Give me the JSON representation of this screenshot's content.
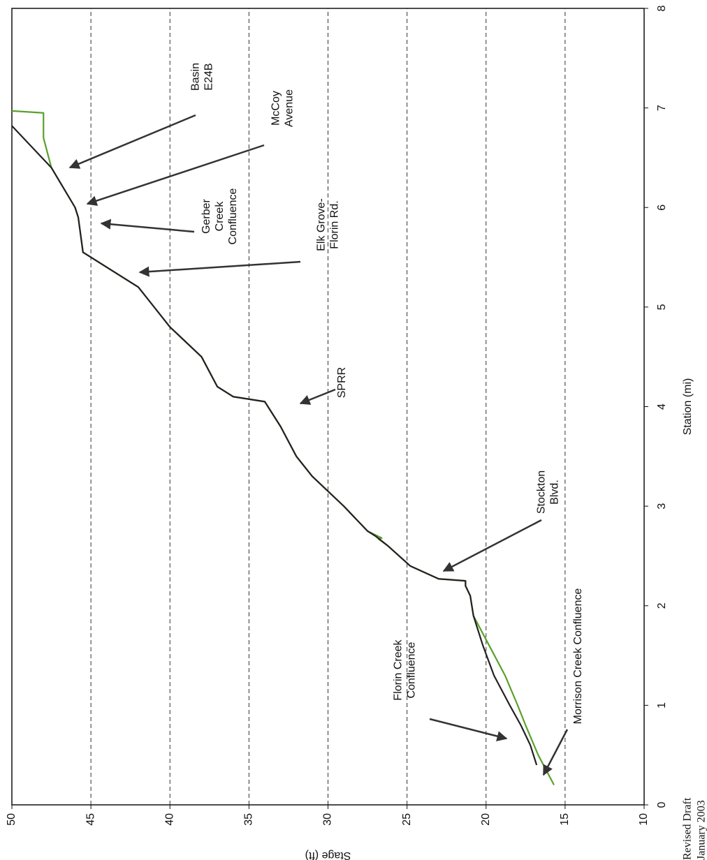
{
  "chart_data": {
    "type": "line",
    "xlabel": "Station (mi)",
    "ylabel": "Stage (ft)",
    "xlim": [
      0,
      8
    ],
    "ylim": [
      10,
      50
    ],
    "xticks": [
      0,
      1,
      2,
      3,
      4,
      5,
      6,
      7,
      8
    ],
    "yticks": [
      10,
      15,
      20,
      25,
      30,
      35,
      40,
      45,
      50
    ],
    "grid": true,
    "series": [
      {
        "color": "#5aa02c",
        "x": [
          0.2,
          0.5,
          0.8,
          1.0,
          1.3,
          1.6,
          1.9,
          2.1,
          2.2,
          2.25,
          2.27,
          2.4,
          2.6,
          2.67,
          2.68,
          2.75,
          3.0,
          3.3,
          3.5,
          3.8,
          4.05,
          4.1,
          4.2,
          4.5,
          4.8,
          5.0,
          5.2,
          5.4,
          5.55,
          5.9,
          6.0,
          6.4,
          6.7,
          6.95,
          6.97
        ],
        "values": [
          15.7,
          16.7,
          17.5,
          18.0,
          18.8,
          19.8,
          20.8,
          21.0,
          21.3,
          21.3,
          23.0,
          24.8,
          26.2,
          26.8,
          26.6,
          27.5,
          29.0,
          31.0,
          32.0,
          33.0,
          34.0,
          36.0,
          37.0,
          38.0,
          40.0,
          41.0,
          42.0,
          44.0,
          45.5,
          45.8,
          46.0,
          47.5,
          48.0,
          48.0,
          50.0
        ]
      },
      {
        "color": "#222222",
        "x": [
          0.4,
          0.6,
          0.8,
          1.0,
          1.3,
          1.6,
          1.9,
          2.1,
          2.2,
          2.25,
          2.27,
          2.4,
          2.6,
          2.7,
          2.75,
          3.0,
          3.3,
          3.5,
          3.8,
          4.05,
          4.1,
          4.2,
          4.5,
          4.8,
          5.0,
          5.2,
          5.4,
          5.55,
          5.9,
          6.0,
          6.4,
          6.82
        ],
        "values": [
          16.8,
          17.2,
          17.8,
          18.5,
          19.5,
          20.2,
          20.8,
          21.0,
          21.3,
          21.3,
          23.0,
          24.8,
          26.2,
          27.0,
          27.5,
          29.0,
          31.0,
          32.0,
          33.0,
          34.0,
          36.0,
          37.0,
          38.0,
          40.0,
          41.0,
          42.0,
          44.0,
          45.5,
          45.8,
          46.0,
          47.5,
          50.0
        ]
      }
    ],
    "annotations": [
      {
        "lines": [
          "Basin",
          "E24B"
        ]
      },
      {
        "lines": [
          "McCoy",
          "Avenue"
        ]
      },
      {
        "lines": [
          "Gerber",
          "Creek",
          "Confluence"
        ]
      },
      {
        "lines": [
          "Elk Grove-",
          "Florin Rd."
        ]
      },
      {
        "lines": [
          "SPRR"
        ]
      },
      {
        "lines": [
          "Stockton",
          "Blvd."
        ]
      },
      {
        "lines": [
          "Florin Creek",
          "Confluence"
        ]
      },
      {
        "lines": [
          "Morrison Creek Confluence"
        ]
      }
    ],
    "footer": [
      "Revised Draft",
      "January 2003"
    ]
  }
}
